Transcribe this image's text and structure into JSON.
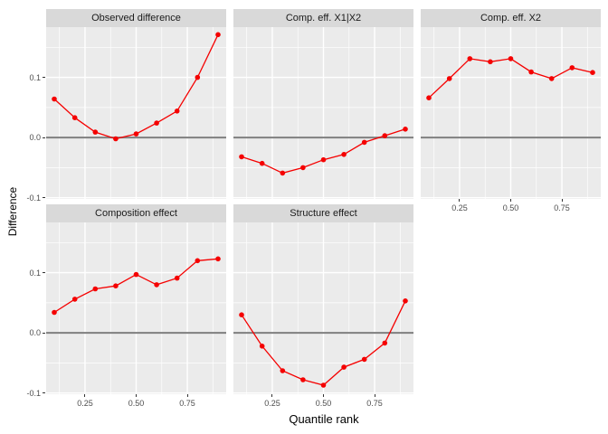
{
  "figure": {
    "y_axis_title": "Difference",
    "x_axis_title": "Quantile rank"
  },
  "colors": {
    "line": "#F50000",
    "point": "#F50000",
    "zero_line": "#7F7F7F",
    "panel_bg": "#EBEBEB",
    "strip_bg": "#D9D9D9",
    "grid": "#FFFFFF",
    "tick_text": "#4D4D4D"
  },
  "chart_data": {
    "type": "line",
    "title": "",
    "xlabel": "Quantile rank",
    "ylabel": "Difference",
    "grid": true,
    "legend": "none",
    "xlim": [
      0.06,
      0.94
    ],
    "ylim": [
      -0.102,
      0.1835
    ],
    "reference_line_y": 0,
    "x": [
      0.1,
      0.2,
      0.3,
      0.4,
      0.5,
      0.6,
      0.7,
      0.8,
      0.9
    ],
    "x_tick_values": [
      0.25,
      0.5,
      0.75
    ],
    "x_tick_labels": [
      "0.25",
      "0.50",
      "0.75"
    ],
    "x_minor_values": [
      0.125,
      0.375,
      0.625,
      0.875
    ],
    "y_tick_values": [
      0.1,
      0.0,
      -0.1
    ],
    "y_tick_labels": [
      "0.1",
      "0.0",
      "-0.1"
    ],
    "y_minor_values": [
      0.15,
      0.05,
      -0.05
    ],
    "facets": [
      {
        "title": "Observed difference",
        "row": 0,
        "col": 0,
        "show_x_axis": false,
        "values": [
          0.064,
          0.033,
          0.009,
          -0.002,
          0.006,
          0.024,
          0.044,
          0.1,
          0.171
        ]
      },
      {
        "title": "Comp. eff. X1|X2",
        "row": 0,
        "col": 1,
        "show_x_axis": false,
        "values": [
          -0.032,
          -0.043,
          -0.059,
          -0.05,
          -0.037,
          -0.028,
          -0.008,
          0.003,
          0.014
        ]
      },
      {
        "title": "Comp. eff. X2",
        "row": 0,
        "col": 2,
        "show_x_axis": true,
        "values": [
          0.066,
          0.098,
          0.131,
          0.126,
          0.131,
          0.109,
          0.098,
          0.116,
          0.108
        ]
      },
      {
        "title": "Composition effect",
        "row": 1,
        "col": 0,
        "show_x_axis": true,
        "values": [
          0.034,
          0.056,
          0.073,
          0.078,
          0.097,
          0.08,
          0.091,
          0.12,
          0.123
        ]
      },
      {
        "title": "Structure effect",
        "row": 1,
        "col": 1,
        "show_x_axis": true,
        "values": [
          0.03,
          -0.022,
          -0.063,
          -0.078,
          -0.087,
          -0.057,
          -0.044,
          -0.017,
          0.053
        ]
      }
    ]
  }
}
